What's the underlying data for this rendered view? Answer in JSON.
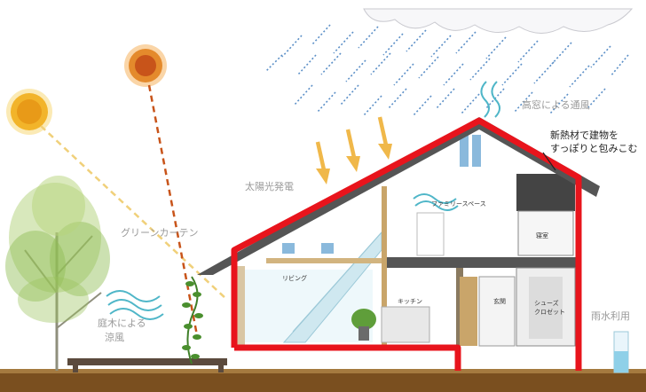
{
  "labels": {
    "ventilation": "高窓による通風",
    "insulation_line1": "新熱材で建物を",
    "insulation_line2": "すっぽりと包みこむ",
    "solar_power": "太陽光発電",
    "green_curtain": "グリーンカーテン",
    "family_space": "ファミリースペース",
    "bedroom": "寝室",
    "living": "リビング",
    "kitchen": "キッチン",
    "entrance": "玄関",
    "shoes_closet_line1": "シューズ",
    "shoes_closet_line2": "クロゼット",
    "garden_tree_line1": "庭木による",
    "garden_tree_line2": "涼風",
    "rainwater": "雨水利用"
  },
  "colors": {
    "insulation_red": "#e8141c",
    "sun_arrow": "#f0b84a",
    "rain": "#5b8fc7",
    "wind": "#4fb6c8",
    "wall": "#555555",
    "ground": "#7a4f1f"
  },
  "icons": [
    "sun-icon",
    "cloud-icon",
    "rain-icon",
    "wind-icon",
    "sunlight-arrow-icon",
    "tree-icon",
    "potted-plant-icon",
    "rain-tank-icon"
  ]
}
